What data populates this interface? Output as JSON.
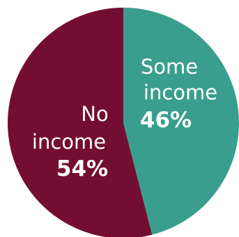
{
  "chart_data": {
    "type": "pie",
    "slices": [
      {
        "label_lines": [
          "Some",
          "income"
        ],
        "percent_label": "46%",
        "value": 46,
        "color": "#3a9e8e"
      },
      {
        "label_lines": [
          "No",
          "income"
        ],
        "percent_label": "54%",
        "value": 54,
        "color": "#730e32"
      }
    ],
    "start": "top",
    "direction": "clockwise"
  }
}
